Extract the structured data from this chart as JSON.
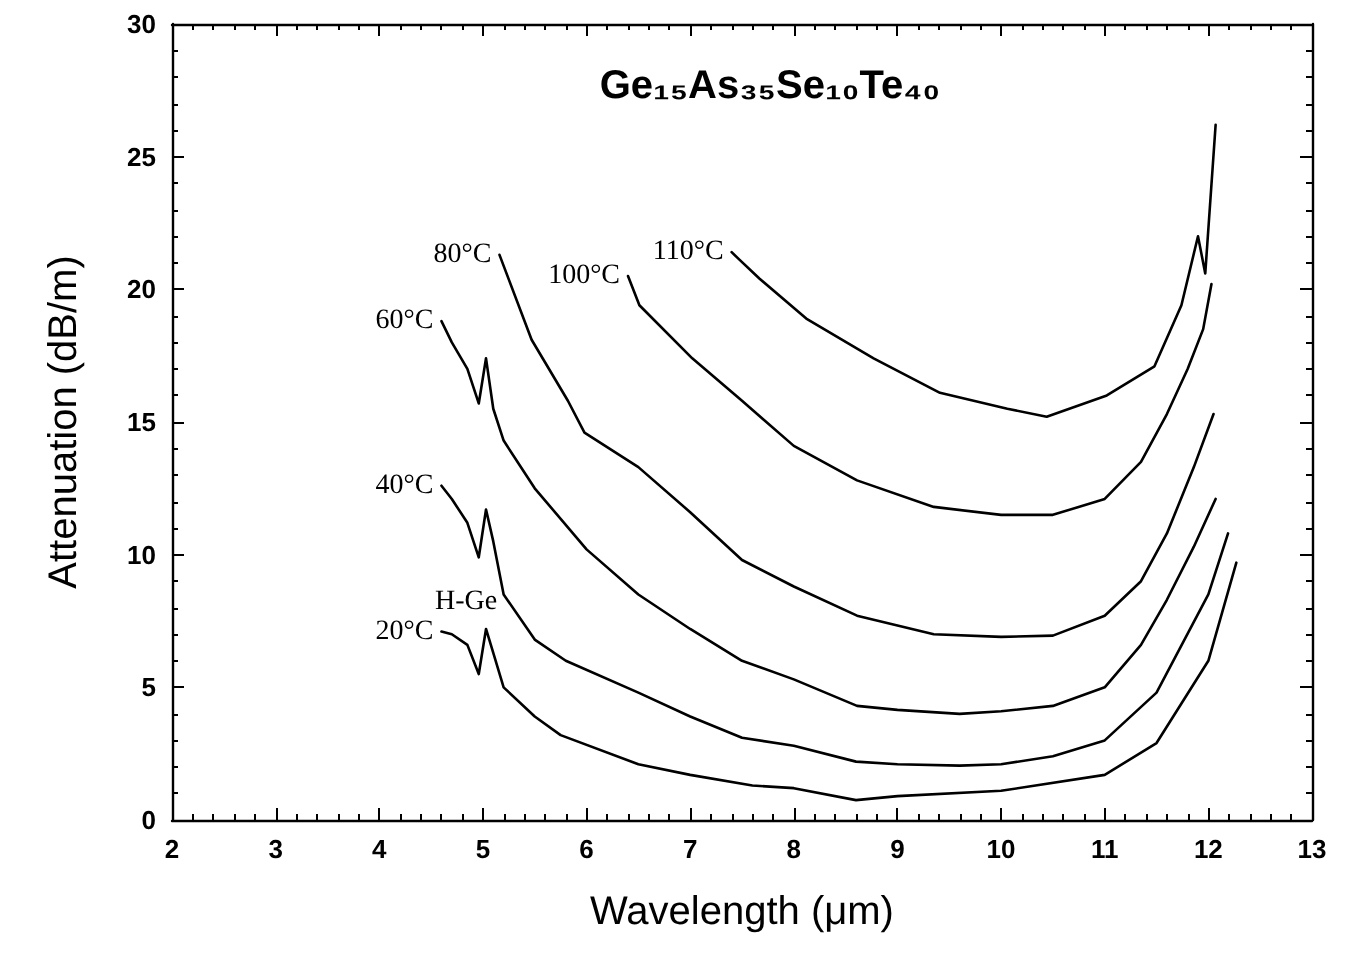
{
  "chart_data": {
    "type": "line",
    "title": "Ge₁₅As₃₅Se₁₀Te₄₀",
    "xlabel": "Wavelength (μm)",
    "ylabel": "Attenuation (dB/m)",
    "xlim": [
      2,
      13
    ],
    "xticks": [
      2,
      3,
      4,
      5,
      6,
      7,
      8,
      9,
      10,
      11,
      12,
      13
    ],
    "ylim": [
      0,
      30
    ],
    "yticks": [
      0,
      5,
      10,
      15,
      20,
      25,
      30
    ],
    "grid": false,
    "legend": false,
    "marker": "none",
    "line_style": "solid",
    "annotations": [
      "H-Ge"
    ],
    "series": [
      {
        "name": "20°C",
        "color": "#000000",
        "x": [
          4.6,
          4.7,
          4.85,
          4.96,
          5.03,
          5.1,
          5.2,
          5.5,
          5.75,
          6.5,
          7,
          7.6,
          8,
          8.6,
          9,
          10,
          11,
          11.5,
          12,
          12.27
        ],
        "values": [
          7.1,
          7.0,
          6.6,
          5.5,
          7.2,
          6.3,
          5.0,
          3.9,
          3.2,
          2.1,
          1.7,
          1.3,
          1.2,
          0.75,
          0.9,
          1.1,
          1.7,
          2.9,
          6.0,
          9.7
        ]
      },
      {
        "name": "40°C",
        "color": "#000000",
        "x": [
          4.6,
          4.7,
          4.85,
          4.96,
          5.03,
          5.1,
          5.2,
          5.5,
          5.8,
          6.5,
          7,
          7.5,
          8,
          8.6,
          9,
          9.6,
          10,
          10.5,
          11,
          11.5,
          12,
          12.19
        ],
        "values": [
          12.6,
          12.1,
          11.2,
          9.9,
          11.7,
          10.5,
          8.5,
          6.8,
          6.0,
          4.8,
          3.9,
          3.1,
          2.8,
          2.2,
          2.1,
          2.05,
          2.1,
          2.4,
          3.0,
          4.8,
          8.5,
          10.8
        ]
      },
      {
        "name": "60°C",
        "color": "#000000",
        "x": [
          4.6,
          4.7,
          4.85,
          4.96,
          5.03,
          5.1,
          5.2,
          5.5,
          6,
          6.5,
          7,
          7.5,
          8,
          8.61,
          9,
          9.6,
          10,
          10.5,
          11,
          11.35,
          11.6,
          11.86,
          12.07
        ],
        "values": [
          18.8,
          18.0,
          17.0,
          15.7,
          17.4,
          15.5,
          14.3,
          12.5,
          10.2,
          8.5,
          7.2,
          6.0,
          5.3,
          4.3,
          4.15,
          4.0,
          4.1,
          4.3,
          5.0,
          6.6,
          8.3,
          10.3,
          12.1
        ]
      },
      {
        "name": "80°C",
        "color": "#000000",
        "x": [
          5.16,
          5.47,
          5.82,
          5.98,
          6.5,
          7,
          7.5,
          8,
          8.61,
          9.35,
          10,
          10.5,
          11,
          11.35,
          11.6,
          11.86,
          12.05
        ],
        "values": [
          21.3,
          18.1,
          15.8,
          14.6,
          13.3,
          11.6,
          9.8,
          8.8,
          7.7,
          7.0,
          6.9,
          6.95,
          7.7,
          9.0,
          10.8,
          13.3,
          15.3
        ]
      },
      {
        "name": "100°C",
        "color": "#000000",
        "x": [
          6.4,
          6.51,
          7.02,
          7.5,
          8,
          8.61,
          9.35,
          10,
          10.5,
          11,
          11.35,
          11.6,
          11.8,
          11.95,
          12.03
        ],
        "values": [
          20.5,
          19.4,
          17.4,
          15.8,
          14.1,
          12.8,
          11.8,
          11.5,
          11.5,
          12.1,
          13.5,
          15.3,
          17.0,
          18.5,
          20.2
        ]
      },
      {
        "name": "110°C",
        "color": "#000000",
        "x": [
          7.4,
          7.48,
          7.67,
          8.12,
          8.77,
          9.41,
          10.06,
          10.44,
          11.02,
          11.48,
          11.74,
          11.9,
          11.97,
          12.07
        ],
        "values": [
          21.4,
          21.1,
          20.4,
          18.9,
          17.4,
          16.1,
          15.5,
          15.2,
          16.0,
          17.1,
          19.4,
          22.0,
          20.6,
          26.2
        ]
      }
    ]
  }
}
